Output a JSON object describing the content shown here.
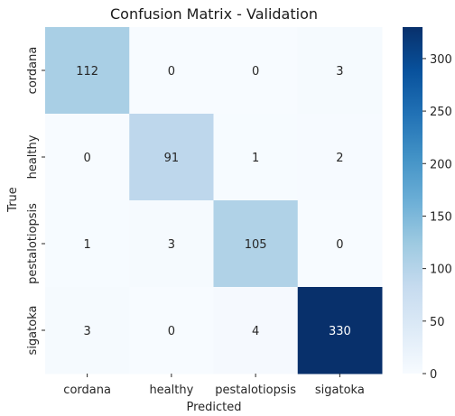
{
  "chart_data": {
    "type": "heatmap",
    "title": "Confusion Matrix - Validation",
    "xlabel": "Predicted",
    "ylabel": "True",
    "x_categories": [
      "cordana",
      "healthy",
      "pestalotiopsis",
      "sigatoka"
    ],
    "y_categories": [
      "cordana",
      "healthy",
      "pestalotiopsis",
      "sigatoka"
    ],
    "matrix": [
      [
        112,
        0,
        0,
        3
      ],
      [
        0,
        91,
        1,
        2
      ],
      [
        1,
        3,
        105,
        0
      ],
      [
        3,
        0,
        4,
        330
      ]
    ],
    "value_range": [
      0,
      330
    ],
    "colormap": "Blues",
    "colorbar": {
      "ticks": [
        0,
        50,
        100,
        150,
        200,
        250,
        300
      ]
    },
    "grid": false,
    "legend": "colorbar-right"
  }
}
